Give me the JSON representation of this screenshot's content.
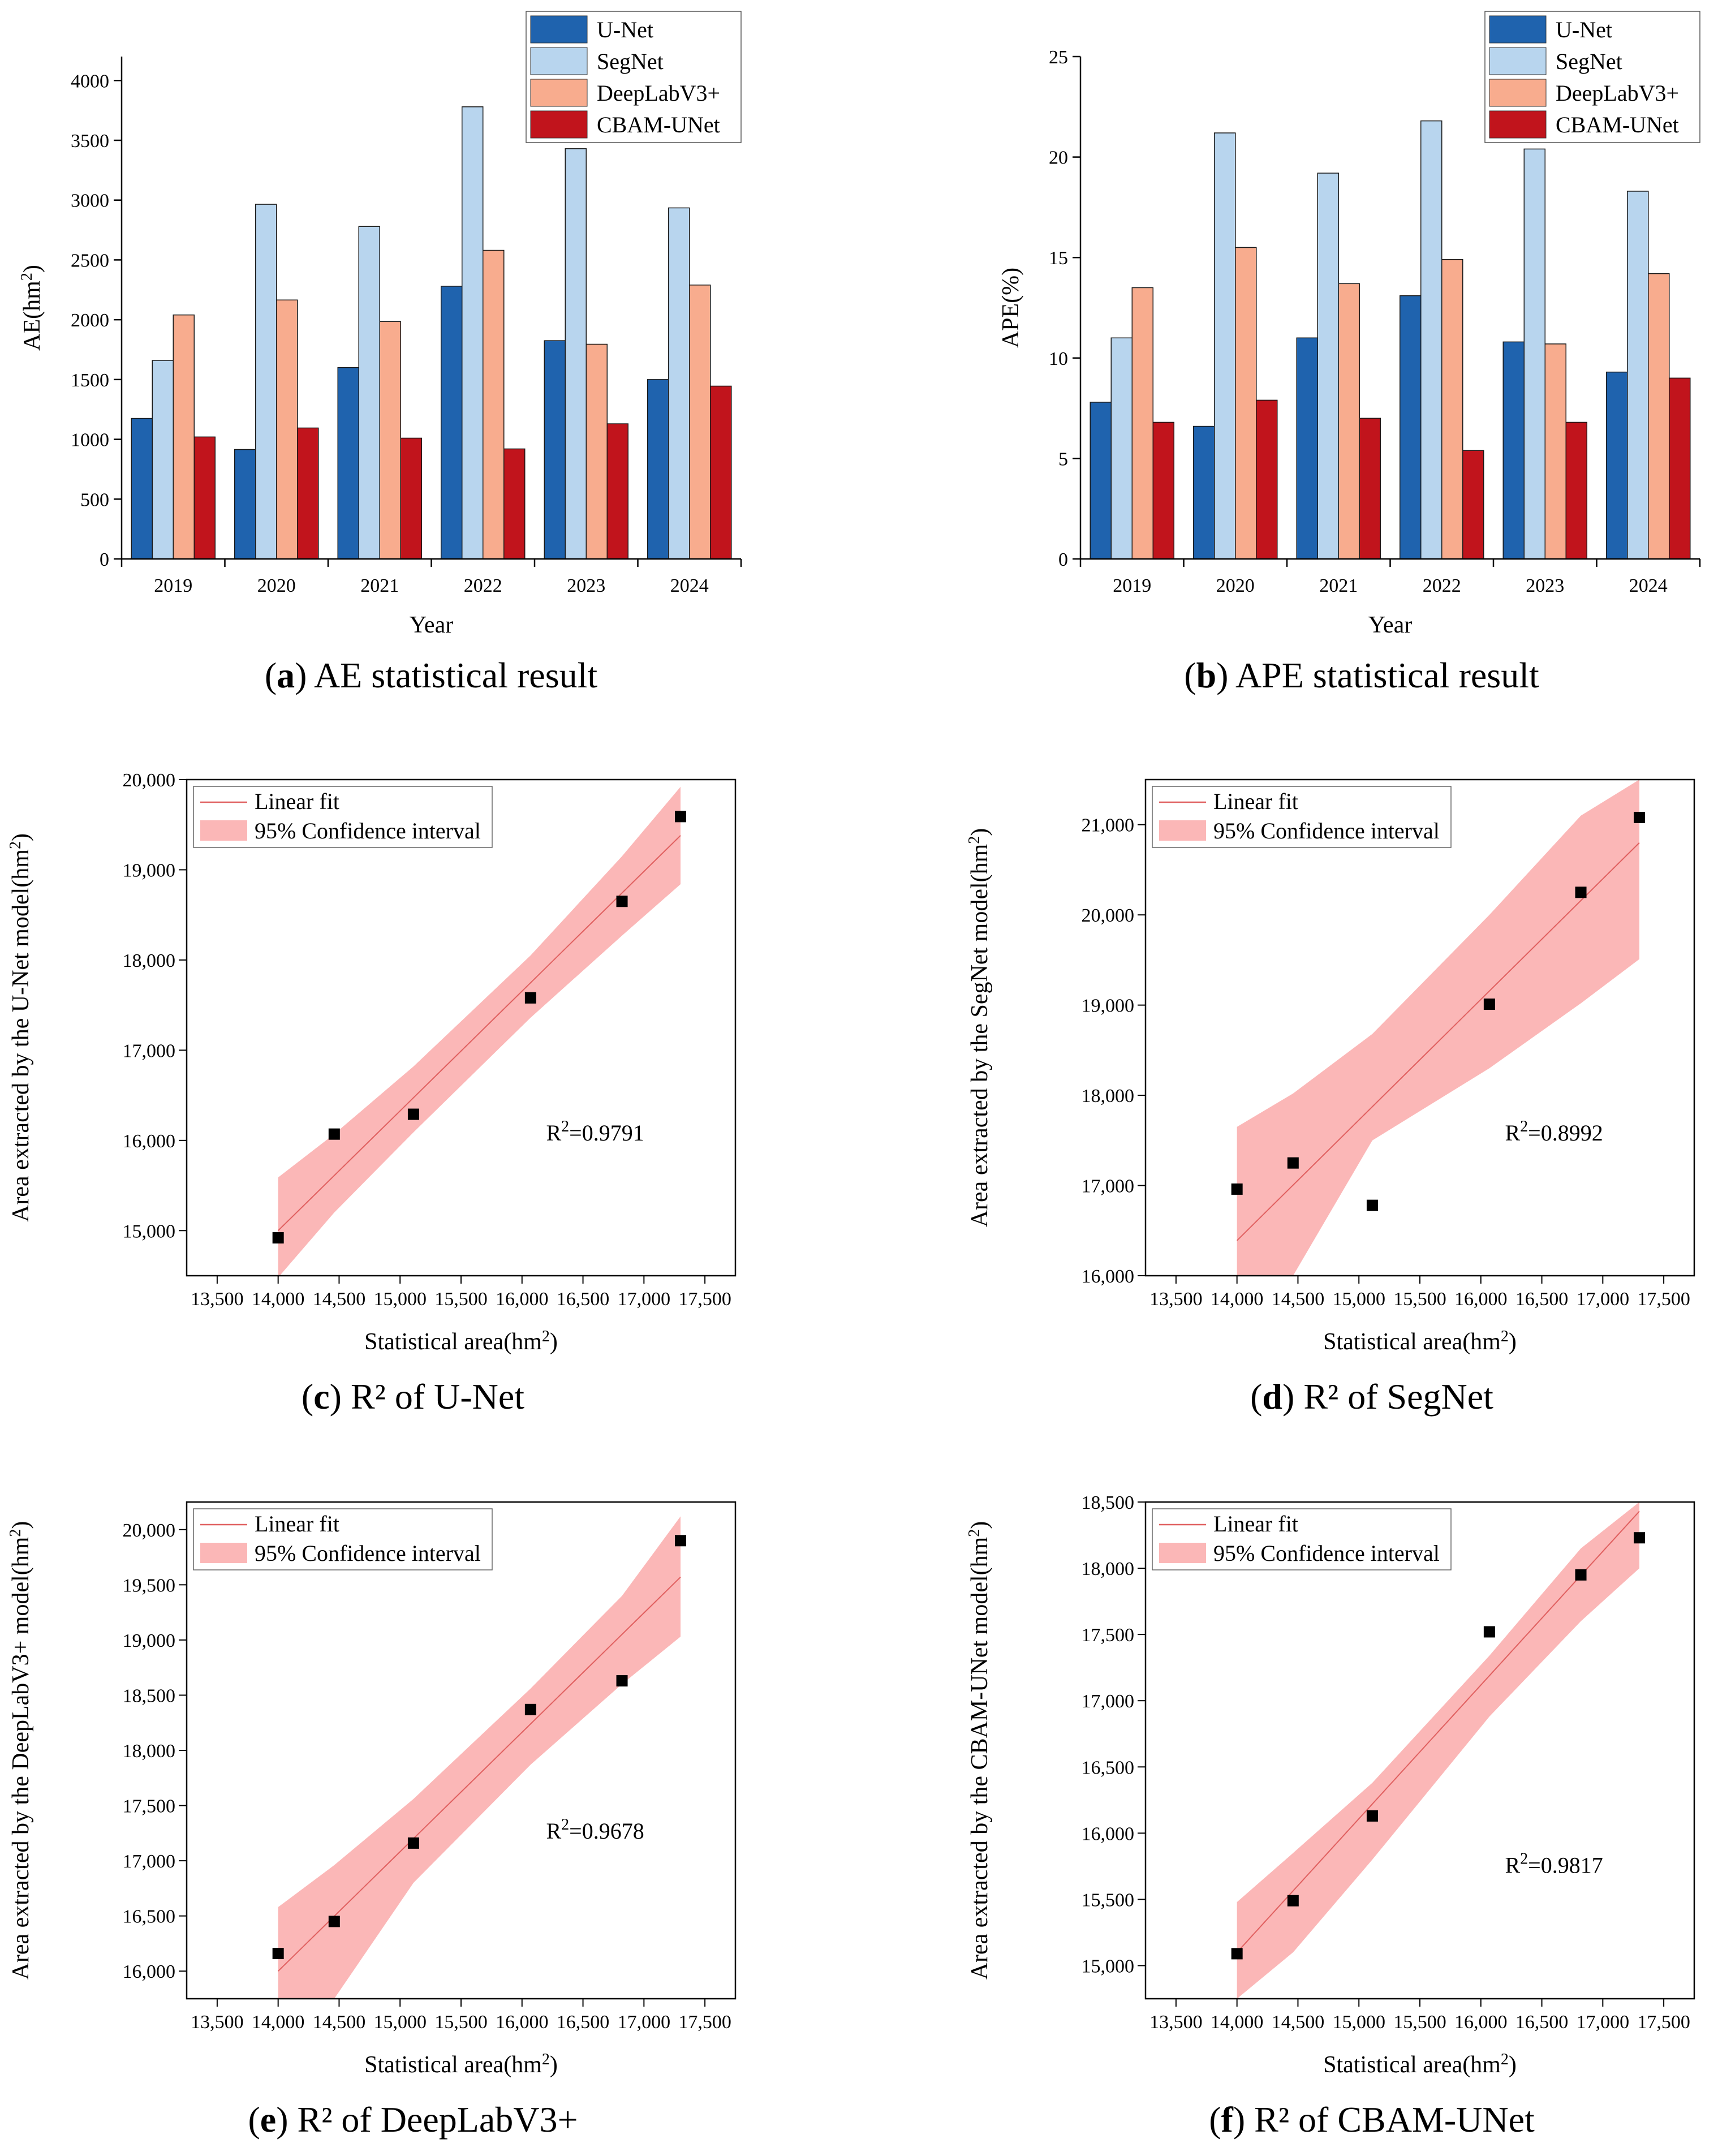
{
  "colors": {
    "U-Net": "#1f63ae",
    "SegNet": "#b8d5ee",
    "DeepLabV3+": "#f8ac8e",
    "CBAM-UNet": "#c1141c",
    "fit_line": "#e06060",
    "band": "#fbb7b7",
    "points": "#000000"
  },
  "chart_data": [
    {
      "id": "a",
      "type": "bar",
      "caption_letter": "a",
      "caption_text": " AE statistical result",
      "xlabel": "Year",
      "ylabel": "AE(hm",
      "ylabel_sup": "2",
      "ylabel_tail": ")",
      "ylim": [
        0,
        4200
      ],
      "yticks": [
        0,
        500,
        1000,
        1500,
        2000,
        2500,
        3000,
        3500,
        4000
      ],
      "categories": [
        "2019",
        "2020",
        "2021",
        "2022",
        "2023",
        "2024"
      ],
      "legend_position": "top-right",
      "series": [
        {
          "name": "U-Net",
          "values": [
            1175,
            915,
            1600,
            2280,
            1825,
            1500
          ]
        },
        {
          "name": "SegNet",
          "values": [
            1660,
            2965,
            2780,
            3780,
            3430,
            2935
          ]
        },
        {
          "name": "DeepLabV3+",
          "values": [
            2040,
            2165,
            1985,
            2580,
            1795,
            2290
          ]
        },
        {
          "name": "CBAM-UNet",
          "values": [
            1020,
            1095,
            1010,
            920,
            1130,
            1445
          ]
        }
      ]
    },
    {
      "id": "b",
      "type": "bar",
      "caption_letter": "b",
      "caption_text": " APE statistical result",
      "xlabel": "Year",
      "ylabel": "APE(%)",
      "ylabel_sup": "",
      "ylabel_tail": "",
      "ylim": [
        0,
        25
      ],
      "yticks": [
        0,
        5,
        10,
        15,
        20,
        25
      ],
      "categories": [
        "2019",
        "2020",
        "2021",
        "2022",
        "2023",
        "2024"
      ],
      "legend_position": "top-right",
      "series": [
        {
          "name": "U-Net",
          "values": [
            7.8,
            6.6,
            11.0,
            13.1,
            10.8,
            9.3
          ]
        },
        {
          "name": "SegNet",
          "values": [
            11.0,
            21.2,
            19.2,
            21.8,
            20.4,
            18.3
          ]
        },
        {
          "name": "DeepLabV3+",
          "values": [
            13.5,
            15.5,
            13.7,
            14.9,
            10.7,
            14.2
          ]
        },
        {
          "name": "CBAM-UNet",
          "values": [
            6.8,
            7.9,
            7.0,
            5.4,
            6.8,
            9.0
          ]
        }
      ]
    },
    {
      "id": "c",
      "type": "scatter",
      "caption_letter": "c",
      "caption_text": " R² of U-Net",
      "xlabel": "Statistical area(hm",
      "xlabel_sup": "2",
      "xlabel_tail": ")",
      "ylabel": "Area extracted by the U-Net model(hm",
      "ylabel_sup": "2",
      "ylabel_tail": ")",
      "xlim": [
        13250,
        17750
      ],
      "xticks": [
        13500,
        14000,
        14500,
        15000,
        15500,
        16000,
        16500,
        17000,
        17500
      ],
      "xtick_labels": [
        "13,500",
        "14,000",
        "14,500",
        "15,000",
        "15,500",
        "16,000",
        "16,500",
        "17,000",
        "17,500"
      ],
      "ylim": [
        14500,
        20000
      ],
      "yticks": [
        15000,
        16000,
        17000,
        18000,
        19000,
        20000
      ],
      "ytick_labels": [
        "15,000",
        "16,000",
        "17,000",
        "18,000",
        "19,000",
        "20,000"
      ],
      "x": [
        14000,
        14460,
        15110,
        16070,
        16820,
        17300
      ],
      "y": [
        14920,
        16070,
        16290,
        17580,
        18650,
        19590
      ],
      "fit": {
        "start": [
          14000,
          15000
        ],
        "end": [
          17300,
          19380
        ]
      },
      "band": {
        "upper": [
          [
            14000,
            15590
          ],
          [
            14460,
            16070
          ],
          [
            15110,
            16820
          ],
          [
            16070,
            18050
          ],
          [
            16820,
            19150
          ],
          [
            17300,
            19920
          ]
        ],
        "lower": [
          [
            14000,
            14480
          ],
          [
            14460,
            15200
          ],
          [
            15110,
            16090
          ],
          [
            16070,
            17360
          ],
          [
            16820,
            18270
          ],
          [
            17300,
            18840
          ]
        ]
      },
      "legend": [
        "Linear fit",
        "95% Confidence interval"
      ],
      "r2_label": "R",
      "r2_sup": "2",
      "r2_value": "=0.9791",
      "r2_at": [
        16600,
        16000
      ]
    },
    {
      "id": "d",
      "type": "scatter",
      "caption_letter": "d",
      "caption_text": " R² of SegNet",
      "xlabel": "Statistical area(hm",
      "xlabel_sup": "2",
      "xlabel_tail": ")",
      "ylabel": "Area extracted by the SegNet model(hm",
      "ylabel_sup": "2",
      "ylabel_tail": ")",
      "xlim": [
        13250,
        17750
      ],
      "xticks": [
        13500,
        14000,
        14500,
        15000,
        15500,
        16000,
        16500,
        17000,
        17500
      ],
      "xtick_labels": [
        "13,500",
        "14,000",
        "14,500",
        "15,000",
        "15,500",
        "16,000",
        "16,500",
        "17,000",
        "17,500"
      ],
      "ylim": [
        16000,
        21500
      ],
      "yticks": [
        16000,
        17000,
        18000,
        19000,
        20000,
        21000
      ],
      "ytick_labels": [
        "16,000",
        "17,000",
        "18,000",
        "19,000",
        "20,000",
        "21,000"
      ],
      "x": [
        14000,
        14460,
        15110,
        16070,
        16820,
        17300
      ],
      "y": [
        16960,
        17250,
        16780,
        19010,
        20250,
        21080
      ],
      "fit": {
        "start": [
          14000,
          16390
        ],
        "end": [
          17300,
          20800
        ]
      },
      "band": {
        "upper": [
          [
            14000,
            17650
          ],
          [
            14460,
            18020
          ],
          [
            15110,
            18680
          ],
          [
            16070,
            20000
          ],
          [
            16820,
            21100
          ],
          [
            17300,
            21500
          ]
        ],
        "lower": [
          [
            14000,
            16000
          ],
          [
            14460,
            16000
          ],
          [
            15110,
            17500
          ],
          [
            16070,
            18300
          ],
          [
            16820,
            19020
          ],
          [
            17300,
            19510
          ]
        ]
      },
      "legend": [
        "Linear fit",
        "95% Confidence interval"
      ],
      "r2_label": "R",
      "r2_sup": "2",
      "r2_value": "=0.8992",
      "r2_at": [
        16600,
        17500
      ]
    },
    {
      "id": "e",
      "type": "scatter",
      "caption_letter": "e",
      "caption_text": " R² of DeepLabV3+",
      "xlabel": "Statistical area(hm",
      "xlabel_sup": "2",
      "xlabel_tail": ")",
      "ylabel": "Area extracted by the DeepLabV3+ model(hm",
      "ylabel_sup": "2",
      "ylabel_tail": ")",
      "xlim": [
        13250,
        17750
      ],
      "xticks": [
        13500,
        14000,
        14500,
        15000,
        15500,
        16000,
        16500,
        17000,
        17500
      ],
      "xtick_labels": [
        "13,500",
        "14,000",
        "14,500",
        "15,000",
        "15,500",
        "16,000",
        "16,500",
        "17,000",
        "17,500"
      ],
      "ylim": [
        15750,
        20250
      ],
      "yticks": [
        16000,
        16500,
        17000,
        17500,
        18000,
        18500,
        19000,
        19500,
        20000
      ],
      "ytick_labels": [
        "16,000",
        "16,500",
        "17,000",
        "17,500",
        "18,000",
        "18,500",
        "19,000",
        "19,500",
        "20,000"
      ],
      "x": [
        14000,
        14460,
        15110,
        16070,
        16820,
        17300
      ],
      "y": [
        16160,
        16450,
        17160,
        18370,
        18630,
        19900
      ],
      "fit": {
        "start": [
          14000,
          16000
        ],
        "end": [
          17300,
          19570
        ]
      },
      "band": {
        "upper": [
          [
            14000,
            16580
          ],
          [
            14460,
            16960
          ],
          [
            15110,
            17560
          ],
          [
            16070,
            18560
          ],
          [
            16820,
            19400
          ],
          [
            17300,
            20120
          ]
        ],
        "lower": [
          [
            14000,
            15750
          ],
          [
            14460,
            15750
          ],
          [
            15110,
            16800
          ],
          [
            16070,
            17870
          ],
          [
            16820,
            18600
          ],
          [
            17300,
            19030
          ]
        ]
      },
      "legend": [
        "Linear fit",
        "95% Confidence interval"
      ],
      "r2_label": "R",
      "r2_sup": "2",
      "r2_value": "=0.9678",
      "r2_at": [
        16600,
        17200
      ]
    },
    {
      "id": "f",
      "type": "scatter",
      "caption_letter": "f",
      "caption_text": " R² of CBAM-UNet",
      "xlabel": "Statistical area(hm",
      "xlabel_sup": "2",
      "xlabel_tail": ")",
      "ylabel": "Area extracted by the CBAM-UNet model(hm",
      "ylabel_sup": "2",
      "ylabel_tail": ")",
      "xlim": [
        13250,
        17750
      ],
      "xticks": [
        13500,
        14000,
        14500,
        15000,
        15500,
        16000,
        16500,
        17000,
        17500
      ],
      "xtick_labels": [
        "13,500",
        "14,000",
        "14,500",
        "15,000",
        "15,500",
        "16,000",
        "16,500",
        "17,000",
        "17,500"
      ],
      "ylim": [
        14750,
        18500
      ],
      "yticks": [
        15000,
        15500,
        16000,
        16500,
        17000,
        17500,
        18000,
        18500
      ],
      "ytick_labels": [
        "15,000",
        "15,500",
        "16,000",
        "16,500",
        "17,000",
        "17,500",
        "18,000",
        "18,500"
      ],
      "x": [
        14000,
        14460,
        15110,
        16070,
        16820,
        17300
      ],
      "y": [
        15090,
        15490,
        16130,
        17520,
        17950,
        18230
      ],
      "fit": {
        "start": [
          14000,
          15100
        ],
        "end": [
          17300,
          18430
        ]
      },
      "band": {
        "upper": [
          [
            14000,
            15480
          ],
          [
            14460,
            15850
          ],
          [
            15110,
            16380
          ],
          [
            16070,
            17340
          ],
          [
            16820,
            18150
          ],
          [
            17300,
            18500
          ]
        ],
        "lower": [
          [
            14000,
            14750
          ],
          [
            14460,
            15100
          ],
          [
            15110,
            15800
          ],
          [
            16070,
            16880
          ],
          [
            16820,
            17600
          ],
          [
            17300,
            18000
          ]
        ]
      },
      "legend": [
        "Linear fit",
        "95% Confidence interval"
      ],
      "r2_label": "R",
      "r2_sup": "2",
      "r2_value": "=0.9817",
      "r2_at": [
        16600,
        15700
      ]
    }
  ]
}
